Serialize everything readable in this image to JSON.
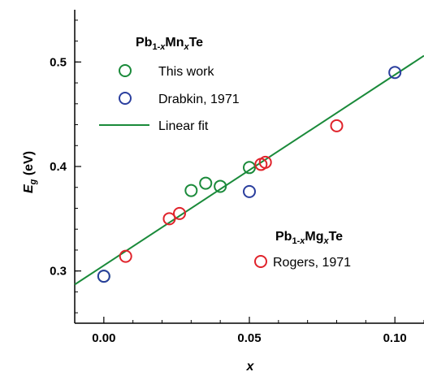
{
  "chart_data": {
    "type": "scatter",
    "x_axis": {
      "label_main": "x",
      "range": [
        -0.01,
        0.11
      ],
      "ticks": [
        0.0,
        0.05,
        0.1
      ],
      "tick_labels": [
        "0.00",
        "0.05",
        "0.10"
      ]
    },
    "y_axis": {
      "label_main": "E",
      "label_sub": "g",
      "label_rest": " (eV)",
      "range": [
        0.25,
        0.55
      ],
      "ticks": [
        0.3,
        0.4,
        0.5
      ],
      "tick_labels": [
        "0.3",
        "0.4",
        "0.5"
      ]
    },
    "groups": [
      {
        "title": {
          "a": "Pb",
          "b": "1-",
          "c": "x",
          "d": "Mn",
          "e": "x",
          "f": "Te"
        },
        "entries": [
          {
            "label": "This work",
            "kind": "marker",
            "color": "#1a8a3a"
          },
          {
            "label": "Drabkin, 1971",
            "kind": "marker",
            "color": "#2b3f9e"
          },
          {
            "label": "Linear fit",
            "kind": "line",
            "color": "#1a8a3a"
          }
        ]
      },
      {
        "title": {
          "a": "Pb",
          "b": "1-",
          "c": "x",
          "d": "Mg",
          "e": "x",
          "f": "Te"
        },
        "entries": [
          {
            "label": "Rogers, 1971",
            "kind": "marker",
            "color": "#e0232b"
          }
        ]
      }
    ],
    "series": [
      {
        "color": "#1a8a3a",
        "points": [
          [
            0.0,
            0.295
          ],
          [
            0.03,
            0.377
          ],
          [
            0.035,
            0.384
          ],
          [
            0.04,
            0.381
          ],
          [
            0.05,
            0.399
          ]
        ]
      },
      {
        "color": "#2b3f9e",
        "points": [
          [
            0.0,
            0.295
          ],
          [
            0.05,
            0.376
          ],
          [
            0.1,
            0.49
          ]
        ]
      },
      {
        "color": "#e0232b",
        "points": [
          [
            0.0075,
            0.314
          ],
          [
            0.0225,
            0.35
          ],
          [
            0.026,
            0.355
          ],
          [
            0.054,
            0.402
          ],
          [
            0.0555,
            0.404
          ],
          [
            0.08,
            0.439
          ]
        ]
      }
    ],
    "fit_line": {
      "color": "#1a8a3a",
      "x": [
        -0.01,
        0.11
      ],
      "y": [
        0.287,
        0.506
      ]
    }
  }
}
